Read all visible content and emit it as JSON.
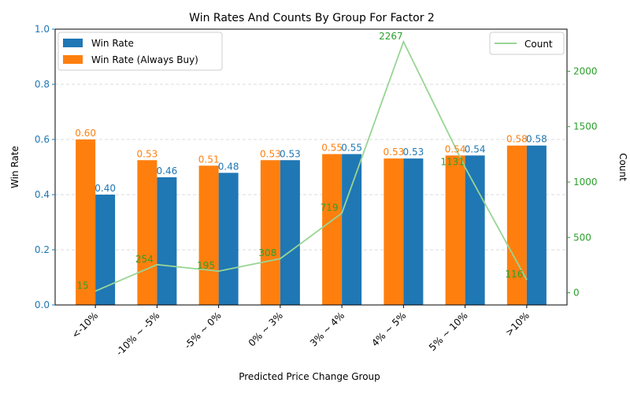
{
  "chart_data": {
    "type": "bar",
    "title": "Win Rates And Counts By Group For Factor 2",
    "xlabel": "Predicted Price Change Group",
    "ylabel": "Win Rate",
    "y2label": "Count",
    "ylim": [
      0,
      1.0
    ],
    "y2lim": [
      -110,
      2380
    ],
    "yticks": [
      "0.0",
      "0.2",
      "0.4",
      "0.6",
      "0.8",
      "1.0"
    ],
    "y2ticks": [
      "0",
      "500",
      "1000",
      "1500",
      "2000"
    ],
    "categories": [
      "<-10%",
      "-10% ~ -5%",
      "-5% ~ 0%",
      "0% ~ 3%",
      "3% ~ 4%",
      "4% ~ 5%",
      "5% ~ 10%",
      ">10%"
    ],
    "series": [
      {
        "name": "Win Rate (Always Buy)",
        "kind": "bar",
        "axis": "left",
        "color": "#ff7f0e",
        "values": [
          0.6,
          0.525,
          0.505,
          0.525,
          0.547,
          0.531,
          0.542,
          0.578
        ],
        "labels": [
          "0.60",
          "0.53",
          "0.51",
          "0.53",
          "0.55",
          "0.53",
          "0.54",
          "0.58"
        ]
      },
      {
        "name": "Win Rate",
        "kind": "bar",
        "axis": "left",
        "color": "#1f77b4",
        "values": [
          0.4,
          0.463,
          0.479,
          0.525,
          0.547,
          0.531,
          0.542,
          0.578
        ],
        "labels": [
          "0.40",
          "0.46",
          "0.48",
          "0.53",
          "0.55",
          "0.53",
          "0.54",
          "0.58"
        ]
      },
      {
        "name": "Count",
        "kind": "line",
        "axis": "right",
        "color": "#98d594",
        "label_color": "#2ca02c",
        "values": [
          15,
          254,
          195,
          308,
          719,
          2267,
          1131,
          116
        ],
        "labels": [
          "15",
          "254",
          "195",
          "308",
          "719",
          "2267",
          "1131",
          "116"
        ]
      }
    ],
    "legend_left": [
      "Win Rate",
      "Win Rate (Always Buy)"
    ],
    "legend_right": [
      "Count"
    ],
    "left_axis_color": "#1f77b4",
    "right_axis_color": "#2ca02c",
    "grid": "y-dashed",
    "legend_placement": [
      "upper left",
      "upper right"
    ]
  }
}
